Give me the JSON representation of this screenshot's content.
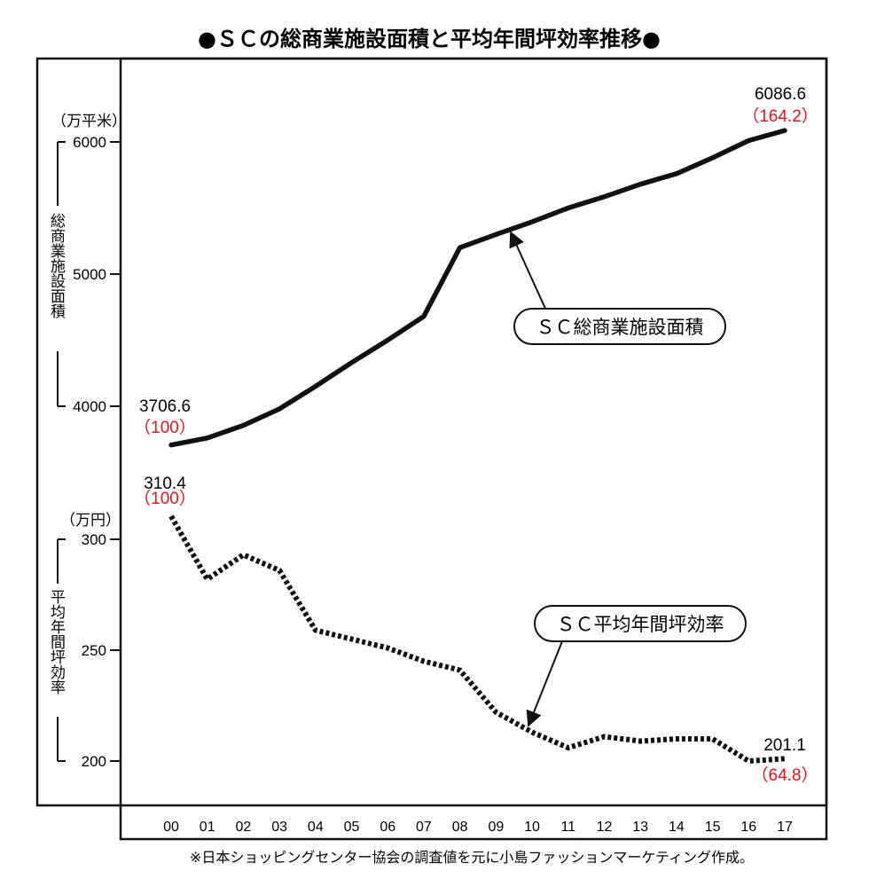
{
  "chart_data": {
    "type": "line",
    "title": "●ＳＣの総商業施設面積と平均年間坪効率推移●",
    "x_labels": [
      "00",
      "01",
      "02",
      "03",
      "04",
      "05",
      "06",
      "07",
      "08",
      "09",
      "10",
      "11",
      "12",
      "13",
      "14",
      "15",
      "16",
      "17"
    ],
    "series": [
      {
        "name": "ＳＣ総商業施設面積",
        "axis": "top",
        "unit": "（万平米）",
        "axis_label": "総商業施設面積",
        "ticks": [
          4000,
          5000,
          6000
        ],
        "ylim": [
          3600,
          6200
        ],
        "values": [
          3706.6,
          3760,
          3855,
          3980,
          4150,
          4330,
          4500,
          4680,
          5200,
          5300,
          5395,
          5500,
          5585,
          5680,
          5760,
          5880,
          6010,
          6086.6
        ],
        "start_label": "3706.6",
        "start_index": "（100）",
        "end_label": "6086.6",
        "end_index": "（164.2）",
        "line_style": "solid",
        "color": "#111111"
      },
      {
        "name": "ＳＣ平均年間坪効率",
        "axis": "bottom",
        "unit": "（万円）",
        "axis_label": "平均年間坪効率",
        "ticks": [
          200,
          250,
          300
        ],
        "ylim": [
          195,
          312
        ],
        "values": [
          310.4,
          282,
          293,
          286,
          259,
          255,
          251,
          245,
          241,
          222,
          213,
          206,
          211,
          209,
          210,
          210,
          200,
          201.1
        ],
        "start_label": "310.4",
        "start_index": "（100）",
        "end_label": "201.1",
        "end_index": "（64.8）",
        "line_style": "dotted",
        "color": "#111111"
      }
    ],
    "annotation_color": "#e0141e",
    "note": "※日本ショッピングセンター協会の調査値を元に小島ファッションマーケティング作成。"
  }
}
